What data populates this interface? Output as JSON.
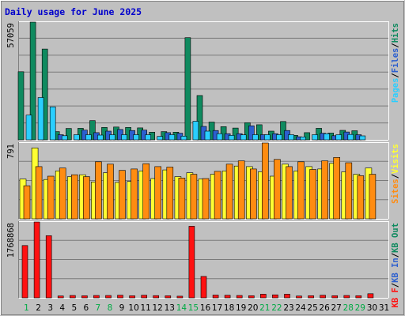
{
  "title": "Daily usage for June 2025",
  "colors": {
    "background": "#c0c0c0",
    "border": "#808080",
    "frame": "#ffffff",
    "grid": "#7a7a7a",
    "title": "#0000cc",
    "weekday_label": "#006600",
    "weekend_label": "#00aa44",
    "pages": "#2aceff",
    "files": "#2c5fcf",
    "hits": "#0f8a5f",
    "visits": "#ffff33",
    "sites": "#ff8c11",
    "kb_f": "#ff1111",
    "kb_in": "#2c5fcf",
    "kb_out": "#0f8a5f"
  },
  "chart_data": [
    {
      "type": "bar",
      "panel": "top",
      "ymax_label": "57059",
      "ylim": [
        0,
        57059
      ],
      "x": [
        "1",
        "2",
        "3",
        "4",
        "5",
        "6",
        "7",
        "8",
        "9",
        "10",
        "11",
        "12",
        "13",
        "14",
        "15",
        "16",
        "17",
        "18",
        "19",
        "20",
        "21",
        "22",
        "23",
        "24",
        "25",
        "26",
        "27",
        "28",
        "29",
        "30",
        "31"
      ],
      "series": [
        {
          "name": "Hits",
          "color": "#0f8a5f",
          "values": [
            33000,
            57059,
            44000,
            4000,
            5500,
            5600,
            9300,
            6000,
            6200,
            6000,
            5800,
            3700,
            4000,
            3700,
            49500,
            21500,
            8600,
            6400,
            5700,
            8300,
            7300,
            4200,
            8900,
            2200,
            3500,
            5600,
            3300,
            4600,
            4400,
            0,
            0
          ]
        },
        {
          "name": "Files",
          "color": "#2c5fcf",
          "values": [
            0,
            0,
            0,
            2500,
            0,
            4700,
            3500,
            4200,
            5000,
            4500,
            4700,
            0,
            3500,
            3200,
            0,
            6500,
            4500,
            3000,
            3000,
            6800,
            2500,
            3000,
            4500,
            1500,
            0,
            3200,
            2000,
            3800,
            2500,
            0,
            0
          ]
        },
        {
          "name": "Pages",
          "color": "#2aceff",
          "values": [
            12000,
            20500,
            16000,
            2000,
            2500,
            2500,
            2300,
            2500,
            2500,
            2500,
            2500,
            1700,
            2500,
            1800,
            9000,
            4200,
            3000,
            2200,
            2400,
            2500,
            2500,
            2500,
            2500,
            1400,
            2500,
            3000,
            2500,
            2600,
            1900,
            0,
            0
          ]
        }
      ]
    },
    {
      "type": "bar",
      "panel": "middle",
      "ymax_label": "791",
      "ylim": [
        0,
        791
      ],
      "x": [
        "1",
        "2",
        "3",
        "4",
        "5",
        "6",
        "7",
        "8",
        "9",
        "10",
        "11",
        "12",
        "13",
        "14",
        "15",
        "16",
        "17",
        "18",
        "19",
        "20",
        "21",
        "22",
        "23",
        "24",
        "25",
        "26",
        "27",
        "28",
        "29",
        "30",
        "31"
      ],
      "series": [
        {
          "name": "Visits",
          "color": "#ffff33",
          "values": [
            415,
            740,
            410,
            500,
            440,
            460,
            385,
            480,
            380,
            390,
            500,
            420,
            510,
            440,
            480,
            415,
            465,
            500,
            550,
            545,
            490,
            445,
            570,
            500,
            545,
            520,
            580,
            490,
            465,
            530,
            0
          ]
        },
        {
          "name": "Sites",
          "color": "#ff8c11",
          "values": [
            345,
            545,
            445,
            530,
            460,
            440,
            595,
            570,
            505,
            520,
            575,
            545,
            540,
            425,
            465,
            420,
            495,
            570,
            605,
            520,
            791,
            620,
            545,
            595,
            515,
            605,
            640,
            585,
            450,
            465,
            0
          ]
        }
      ]
    },
    {
      "type": "bar",
      "panel": "bottom",
      "ymax_label": "1768868",
      "ylim": [
        0,
        1768868
      ],
      "x": [
        "1",
        "2",
        "3",
        "4",
        "5",
        "6",
        "7",
        "8",
        "9",
        "10",
        "11",
        "12",
        "13",
        "14",
        "15",
        "16",
        "17",
        "18",
        "19",
        "20",
        "21",
        "22",
        "23",
        "24",
        "25",
        "26",
        "27",
        "28",
        "29",
        "30",
        "31"
      ],
      "series": [
        {
          "name": "KB F",
          "color": "#ff1111",
          "values": [
            1220000,
            1768868,
            1450000,
            45000,
            55000,
            48000,
            55000,
            55000,
            60000,
            48000,
            60000,
            52000,
            48000,
            38000,
            1670000,
            500000,
            65000,
            60000,
            55000,
            50000,
            85000,
            70000,
            85000,
            42000,
            50000,
            60000,
            50000,
            55000,
            50000,
            95000,
            0
          ]
        }
      ]
    }
  ],
  "x_labels": [
    {
      "text": "1",
      "weekend": true
    },
    {
      "text": "2",
      "weekend": false
    },
    {
      "text": "3",
      "weekend": false
    },
    {
      "text": "4",
      "weekend": false
    },
    {
      "text": "5",
      "weekend": false
    },
    {
      "text": "6",
      "weekend": false
    },
    {
      "text": "7",
      "weekend": true
    },
    {
      "text": "8",
      "weekend": true
    },
    {
      "text": "9",
      "weekend": false
    },
    {
      "text": "10",
      "weekend": false
    },
    {
      "text": "11",
      "weekend": false
    },
    {
      "text": "12",
      "weekend": false
    },
    {
      "text": "13",
      "weekend": false
    },
    {
      "text": "14",
      "weekend": true
    },
    {
      "text": "15",
      "weekend": true
    },
    {
      "text": "16",
      "weekend": false
    },
    {
      "text": "17",
      "weekend": false
    },
    {
      "text": "18",
      "weekend": false
    },
    {
      "text": "19",
      "weekend": false
    },
    {
      "text": "20",
      "weekend": false
    },
    {
      "text": "21",
      "weekend": true
    },
    {
      "text": "22",
      "weekend": true
    },
    {
      "text": "23",
      "weekend": false
    },
    {
      "text": "24",
      "weekend": false
    },
    {
      "text": "25",
      "weekend": false
    },
    {
      "text": "26",
      "weekend": false
    },
    {
      "text": "27",
      "weekend": false
    },
    {
      "text": "28",
      "weekend": true
    },
    {
      "text": "29",
      "weekend": true
    },
    {
      "text": "30",
      "weekend": false
    },
    {
      "text": "31",
      "weekend": false
    }
  ],
  "legends": {
    "top": [
      {
        "text": "Pages",
        "color": "#2aceff"
      },
      {
        "text": "/",
        "color": "#000000"
      },
      {
        "text": "Files",
        "color": "#2c5fcf"
      },
      {
        "text": "/",
        "color": "#000000"
      },
      {
        "text": "Hits",
        "color": "#0f8a5f"
      }
    ],
    "middle": [
      {
        "text": "Sites",
        "color": "#ff8c11"
      },
      {
        "text": "/",
        "color": "#000000"
      },
      {
        "text": "Visits",
        "color": "#ffff33"
      }
    ],
    "bottom": [
      {
        "text": "KB F",
        "color": "#ff1111"
      },
      {
        "text": "/",
        "color": "#000000"
      },
      {
        "text": "KB In",
        "color": "#2c5fcf"
      },
      {
        "text": "/",
        "color": "#000000"
      },
      {
        "text": "KB Out",
        "color": "#0f8a5f"
      }
    ]
  }
}
